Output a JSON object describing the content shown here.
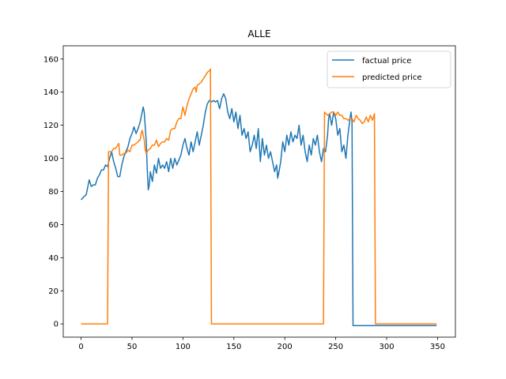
{
  "chart_data": {
    "type": "line",
    "title": "ALLE",
    "xlabel": "",
    "ylabel": "",
    "xlim": [
      -17.5,
      367.5
    ],
    "ylim": [
      -8,
      168
    ],
    "xticks": [
      0,
      50,
      100,
      150,
      200,
      250,
      300,
      350
    ],
    "yticks": [
      0,
      20,
      40,
      60,
      80,
      100,
      120,
      140,
      160
    ],
    "grid": false,
    "legend_position": "top-right",
    "series": [
      {
        "name": "factual price",
        "color": "#1f77b4",
        "points": [
          [
            0,
            75
          ],
          [
            3,
            77
          ],
          [
            5,
            78
          ],
          [
            7,
            84
          ],
          [
            8,
            87
          ],
          [
            10,
            83
          ],
          [
            12,
            84
          ],
          [
            14,
            84
          ],
          [
            16,
            88
          ],
          [
            18,
            90
          ],
          [
            20,
            93
          ],
          [
            22,
            93
          ],
          [
            24,
            96
          ],
          [
            26,
            95
          ],
          [
            28,
            100
          ],
          [
            30,
            104
          ],
          [
            32,
            98
          ],
          [
            34,
            94
          ],
          [
            36,
            89
          ],
          [
            38,
            89
          ],
          [
            40,
            96
          ],
          [
            42,
            101
          ],
          [
            44,
            104
          ],
          [
            46,
            107
          ],
          [
            48,
            112
          ],
          [
            50,
            115
          ],
          [
            52,
            119
          ],
          [
            54,
            115
          ],
          [
            56,
            118
          ],
          [
            58,
            122
          ],
          [
            60,
            128
          ],
          [
            61,
            131
          ],
          [
            62,
            128
          ],
          [
            64,
            110
          ],
          [
            65,
            93
          ],
          [
            66,
            81
          ],
          [
            67,
            84
          ],
          [
            68,
            92
          ],
          [
            70,
            86
          ],
          [
            72,
            96
          ],
          [
            74,
            91
          ],
          [
            76,
            100
          ],
          [
            78,
            94
          ],
          [
            80,
            96
          ],
          [
            82,
            94
          ],
          [
            84,
            98
          ],
          [
            86,
            92
          ],
          [
            88,
            100
          ],
          [
            90,
            94
          ],
          [
            92,
            100
          ],
          [
            94,
            96
          ],
          [
            96,
            99
          ],
          [
            98,
            102
          ],
          [
            100,
            108
          ],
          [
            102,
            112
          ],
          [
            104,
            106
          ],
          [
            106,
            102
          ],
          [
            108,
            110
          ],
          [
            110,
            104
          ],
          [
            112,
            110
          ],
          [
            114,
            116
          ],
          [
            116,
            108
          ],
          [
            118,
            114
          ],
          [
            120,
            120
          ],
          [
            122,
            128
          ],
          [
            124,
            133
          ],
          [
            126,
            135
          ],
          [
            128,
            134
          ],
          [
            130,
            135
          ],
          [
            132,
            134
          ],
          [
            134,
            135
          ],
          [
            136,
            130
          ],
          [
            138,
            136
          ],
          [
            140,
            139
          ],
          [
            142,
            136
          ],
          [
            144,
            128
          ],
          [
            146,
            124
          ],
          [
            148,
            130
          ],
          [
            150,
            122
          ],
          [
            152,
            128
          ],
          [
            154,
            118
          ],
          [
            156,
            126
          ],
          [
            158,
            114
          ],
          [
            160,
            118
          ],
          [
            162,
            112
          ],
          [
            164,
            116
          ],
          [
            166,
            104
          ],
          [
            168,
            108
          ],
          [
            170,
            114
          ],
          [
            172,
            106
          ],
          [
            174,
            118
          ],
          [
            176,
            98
          ],
          [
            178,
            112
          ],
          [
            180,
            102
          ],
          [
            182,
            108
          ],
          [
            184,
            100
          ],
          [
            186,
            104
          ],
          [
            188,
            98
          ],
          [
            190,
            92
          ],
          [
            192,
            96
          ],
          [
            193,
            88
          ],
          [
            194,
            91
          ],
          [
            196,
            98
          ],
          [
            198,
            110
          ],
          [
            200,
            104
          ],
          [
            202,
            114
          ],
          [
            204,
            108
          ],
          [
            206,
            116
          ],
          [
            208,
            110
          ],
          [
            210,
            114
          ],
          [
            212,
            112
          ],
          [
            214,
            120
          ],
          [
            216,
            108
          ],
          [
            218,
            114
          ],
          [
            220,
            104
          ],
          [
            222,
            98
          ],
          [
            224,
            108
          ],
          [
            226,
            102
          ],
          [
            228,
            112
          ],
          [
            230,
            108
          ],
          [
            232,
            114
          ],
          [
            234,
            104
          ],
          [
            236,
            98
          ],
          [
            238,
            106
          ],
          [
            240,
            104
          ],
          [
            242,
            114
          ],
          [
            243,
            124
          ],
          [
            244,
            127
          ],
          [
            246,
            120
          ],
          [
            248,
            128
          ],
          [
            250,
            124
          ],
          [
            252,
            114
          ],
          [
            254,
            118
          ],
          [
            256,
            104
          ],
          [
            258,
            108
          ],
          [
            260,
            100
          ],
          [
            262,
            114
          ],
          [
            264,
            124
          ],
          [
            265,
            128
          ],
          [
            266,
            122
          ],
          [
            267,
            -1
          ],
          [
            280,
            -1
          ],
          [
            300,
            -1
          ],
          [
            320,
            -1
          ],
          [
            349,
            -1
          ]
        ]
      },
      {
        "name": "predicted price",
        "color": "#ff7f0e",
        "points": [
          [
            0,
            0
          ],
          [
            26,
            0
          ],
          [
            27,
            104
          ],
          [
            30,
            104
          ],
          [
            32,
            106
          ],
          [
            34,
            106
          ],
          [
            36,
            108
          ],
          [
            37,
            109
          ],
          [
            38,
            102
          ],
          [
            40,
            102
          ],
          [
            42,
            103
          ],
          [
            44,
            103
          ],
          [
            46,
            105
          ],
          [
            48,
            104
          ],
          [
            50,
            108
          ],
          [
            52,
            108
          ],
          [
            54,
            109
          ],
          [
            56,
            110
          ],
          [
            57,
            111
          ],
          [
            58,
            111
          ],
          [
            59,
            115
          ],
          [
            60,
            117
          ],
          [
            62,
            111
          ],
          [
            63,
            105
          ],
          [
            64,
            103
          ],
          [
            66,
            105
          ],
          [
            68,
            106
          ],
          [
            70,
            108
          ],
          [
            72,
            108
          ],
          [
            74,
            111
          ],
          [
            76,
            107
          ],
          [
            78,
            109
          ],
          [
            80,
            110
          ],
          [
            82,
            110
          ],
          [
            84,
            112
          ],
          [
            86,
            111
          ],
          [
            88,
            117
          ],
          [
            90,
            118
          ],
          [
            92,
            118
          ],
          [
            94,
            122
          ],
          [
            96,
            124
          ],
          [
            98,
            124
          ],
          [
            99,
            128
          ],
          [
            100,
            131
          ],
          [
            102,
            126
          ],
          [
            104,
            132
          ],
          [
            106,
            136
          ],
          [
            108,
            139
          ],
          [
            110,
            142
          ],
          [
            112,
            143
          ],
          [
            113,
            140
          ],
          [
            114,
            144
          ],
          [
            116,
            145
          ],
          [
            118,
            146
          ],
          [
            120,
            148
          ],
          [
            122,
            150
          ],
          [
            124,
            152
          ],
          [
            126,
            153
          ],
          [
            127,
            154
          ],
          [
            128,
            0
          ],
          [
            150,
            0
          ],
          [
            200,
            0
          ],
          [
            238,
            0
          ],
          [
            239,
            128
          ],
          [
            242,
            126
          ],
          [
            244,
            127
          ],
          [
            246,
            128
          ],
          [
            248,
            128
          ],
          [
            250,
            126
          ],
          [
            252,
            128
          ],
          [
            254,
            126
          ],
          [
            256,
            126
          ],
          [
            258,
            124
          ],
          [
            260,
            124
          ],
          [
            262,
            123
          ],
          [
            264,
            124
          ],
          [
            266,
            124
          ],
          [
            268,
            122
          ],
          [
            270,
            126
          ],
          [
            272,
            124
          ],
          [
            274,
            123
          ],
          [
            276,
            121
          ],
          [
            278,
            122
          ],
          [
            280,
            125
          ],
          [
            282,
            122
          ],
          [
            284,
            126
          ],
          [
            286,
            123
          ],
          [
            288,
            127
          ],
          [
            289,
            0
          ],
          [
            300,
            0
          ],
          [
            320,
            0
          ],
          [
            349,
            0
          ]
        ]
      }
    ]
  }
}
